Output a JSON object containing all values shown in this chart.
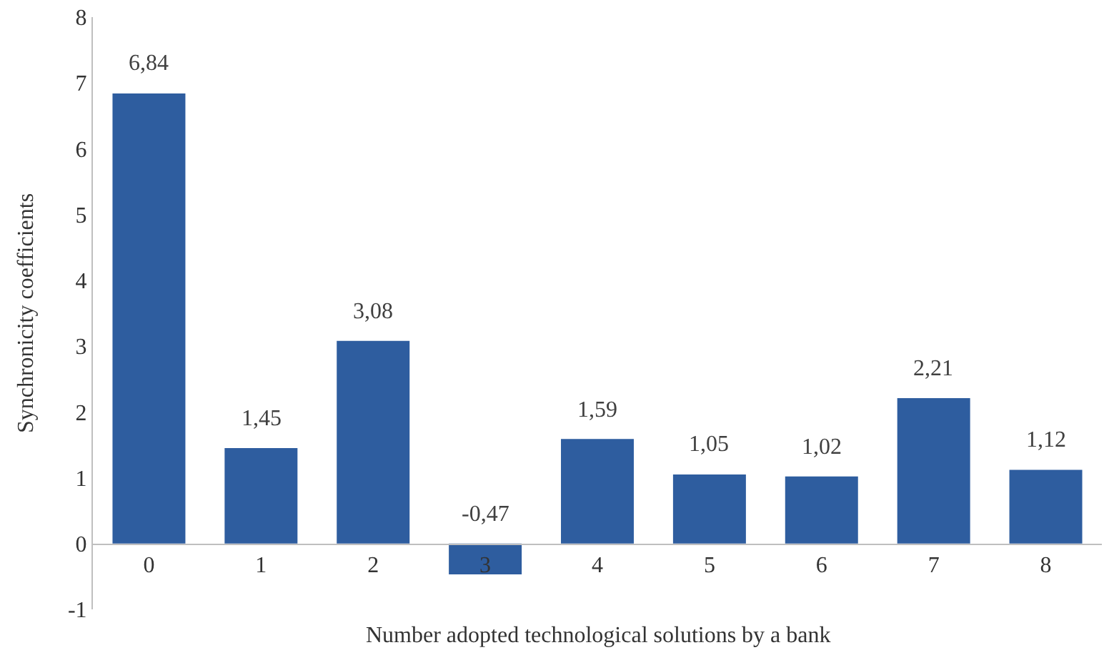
{
  "chart_data": {
    "type": "bar",
    "xlabel": "Number adopted technological solutions by a bank",
    "ylabel": "Synchronicity coefficients",
    "categories": [
      "0",
      "1",
      "2",
      "3",
      "4",
      "5",
      "6",
      "7",
      "8"
    ],
    "values": [
      6.84,
      1.45,
      3.08,
      -0.47,
      1.59,
      1.05,
      1.02,
      2.21,
      1.12
    ],
    "value_labels": [
      "6,84",
      "1,45",
      "3,08",
      "-0,47",
      "1,59",
      "1,05",
      "1,02",
      "2,21",
      "1,12"
    ],
    "color": "#2e5d9f",
    "ylim": [
      -1,
      8
    ],
    "yticks": [
      -1,
      0,
      1,
      2,
      3,
      4,
      5,
      6,
      7,
      8
    ],
    "grid": false,
    "legend": false
  }
}
